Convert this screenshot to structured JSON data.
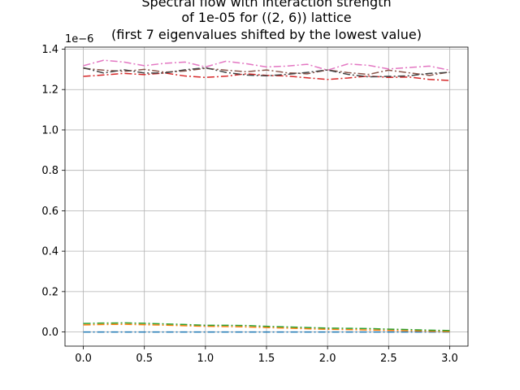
{
  "chart_data": {
    "type": "line",
    "title_lines": [
      "Spectral flow with interaction strength",
      "of 1e-05 for ((2, 6)) lattice",
      "(first 7 eigenvalues shifted by the lowest value)"
    ],
    "xlabel": "",
    "ylabel": "",
    "y_offset_label": "1e−6",
    "xlim": [
      -0.15,
      3.15
    ],
    "ylim": [
      -0.07,
      1.41
    ],
    "x_ticks": [
      0.0,
      0.5,
      1.0,
      1.5,
      2.0,
      2.5,
      3.0
    ],
    "x_tick_labels": [
      "0.0",
      "0.5",
      "1.0",
      "1.5",
      "2.0",
      "2.5",
      "3.0"
    ],
    "y_ticks": [
      0.0,
      0.2,
      0.4,
      0.6,
      0.8,
      1.0,
      1.2,
      1.4
    ],
    "y_tick_labels": [
      "0.0",
      "0.2",
      "0.4",
      "0.6",
      "0.8",
      "1.0",
      "1.2",
      "1.4"
    ],
    "grid": true,
    "x": [
      0.0,
      0.1667,
      0.3333,
      0.5,
      0.6667,
      0.8333,
      1.0,
      1.1667,
      1.3333,
      1.5,
      1.6667,
      1.8333,
      2.0,
      2.1667,
      2.3333,
      2.5,
      2.6667,
      2.8333,
      3.0
    ],
    "series": [
      {
        "color": "#1f77b4",
        "values": [
          0.0,
          0.0,
          0.0,
          0.0,
          0.0,
          0.0,
          0.0,
          0.0,
          0.0,
          0.0,
          0.0,
          0.0,
          0.0,
          0.0,
          0.0,
          0.0,
          0.0,
          0.0,
          0.0
        ]
      },
      {
        "color": "#ff7f0e",
        "values": [
          0.035,
          0.037,
          0.038,
          0.036,
          0.034,
          0.031,
          0.028,
          0.027,
          0.025,
          0.022,
          0.019,
          0.016,
          0.013,
          0.012,
          0.01,
          0.008,
          0.006,
          0.004,
          0.002
        ]
      },
      {
        "color": "#2ca02c",
        "values": [
          0.042,
          0.044,
          0.045,
          0.043,
          0.04,
          0.037,
          0.033,
          0.033,
          0.032,
          0.028,
          0.025,
          0.022,
          0.019,
          0.018,
          0.017,
          0.014,
          0.012,
          0.009,
          0.007
        ]
      },
      {
        "color": "#d62728",
        "values": [
          1.265,
          1.272,
          1.28,
          1.274,
          1.282,
          1.267,
          1.26,
          1.266,
          1.278,
          1.27,
          1.267,
          1.258,
          1.25,
          1.257,
          1.267,
          1.26,
          1.262,
          1.25,
          1.245
        ]
      },
      {
        "color": "#8c564b",
        "values": [
          1.305,
          1.296,
          1.29,
          1.3,
          1.286,
          1.292,
          1.305,
          1.296,
          1.288,
          1.297,
          1.283,
          1.278,
          1.297,
          1.284,
          1.275,
          1.296,
          1.283,
          1.27,
          1.287
        ]
      },
      {
        "color": "#e377c2",
        "values": [
          1.318,
          1.345,
          1.336,
          1.318,
          1.33,
          1.336,
          1.312,
          1.34,
          1.328,
          1.312,
          1.316,
          1.325,
          1.296,
          1.327,
          1.32,
          1.302,
          1.309,
          1.316,
          1.296
        ]
      },
      {
        "color": "#444444",
        "values": [
          1.308,
          1.282,
          1.298,
          1.282,
          1.282,
          1.298,
          1.308,
          1.285,
          1.272,
          1.268,
          1.275,
          1.285,
          1.297,
          1.275,
          1.263,
          1.265,
          1.268,
          1.28,
          1.285
        ]
      }
    ]
  }
}
